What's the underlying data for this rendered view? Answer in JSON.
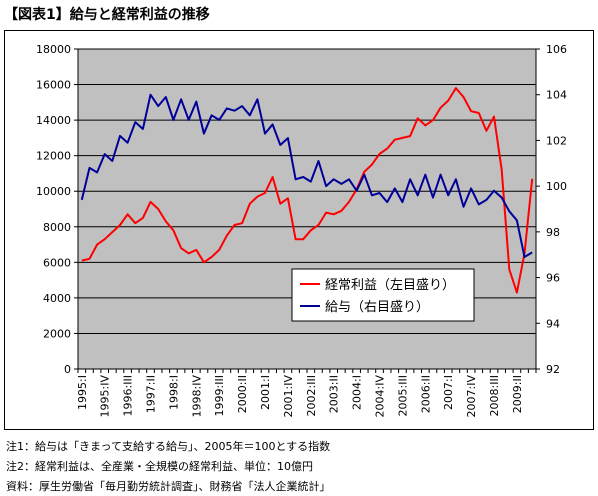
{
  "title": "【図表1】給与と経常利益の推移",
  "notes": [
    "注1：給与は「きまって支給する給与」、2005年＝100とする指数",
    "注2：経常利益は、全産業・全規模の経常利益、単位：10億円",
    "資料：厚生労働省「毎月勤労統計調査」、財務省「法人企業統計」"
  ],
  "chart_data": {
    "type": "line",
    "x": [
      "1995:I",
      "1995:II",
      "1995:III",
      "1995:IV",
      "1996:I",
      "1996:II",
      "1996:III",
      "1996:IV",
      "1997:I",
      "1997:II",
      "1997:III",
      "1997:IV",
      "1998:I",
      "1998:II",
      "1998:III",
      "1998:IV",
      "1999:I",
      "1999:II",
      "1999:III",
      "1999:IV",
      "2000:I",
      "2000:II",
      "2000:III",
      "2000:IV",
      "2001:I",
      "2001:II",
      "2001:III",
      "2001:IV",
      "2002:I",
      "2002:II",
      "2002:III",
      "2002:IV",
      "2003:I",
      "2003:II",
      "2003:III",
      "2003:IV",
      "2004:I",
      "2004:II",
      "2004:III",
      "2004:IV",
      "2005:I",
      "2005:II",
      "2005:III",
      "2005:IV",
      "2006:I",
      "2006:II",
      "2006:III",
      "2006:IV",
      "2007:I",
      "2007:II",
      "2007:III",
      "2007:IV",
      "2008:I",
      "2008:II",
      "2008:III",
      "2008:IV",
      "2009:I",
      "2009:II",
      "2009:III",
      "2009:IV"
    ],
    "x_tick_labels": [
      "1995:I",
      "1995:IV",
      "1996:III",
      "1997:II",
      "1998:I",
      "1998:IV",
      "1999:III",
      "2000:II",
      "2001:I",
      "2001:IV",
      "2002:III",
      "2003:II",
      "2004:I",
      "2004:IV",
      "2005:III",
      "2006:II",
      "2007:I",
      "2007:IV",
      "2008:III",
      "2009:II"
    ],
    "series": [
      {
        "name": "経常利益（左目盛り）",
        "axis": "left",
        "color": "#ff0000",
        "values": [
          6100,
          6200,
          7000,
          7300,
          7700,
          8100,
          8700,
          8200,
          8500,
          9400,
          9000,
          8300,
          7800,
          6800,
          6500,
          6700,
          6000,
          6300,
          6700,
          7500,
          8100,
          8200,
          9300,
          9700,
          9900,
          10800,
          9300,
          9600,
          7300,
          7300,
          7800,
          8100,
          8800,
          8700,
          8900,
          9400,
          10100,
          11100,
          11500,
          12100,
          12400,
          12900,
          13000,
          13100,
          14100,
          13700,
          14000,
          14700,
          15100,
          15800,
          15300,
          14500,
          14400,
          13400,
          14200,
          11200,
          5600,
          4300,
          6500,
          10700
        ]
      },
      {
        "name": "給与（右目盛り）",
        "axis": "right",
        "color": "#000099",
        "values": [
          99.4,
          100.8,
          100.6,
          101.4,
          101.1,
          102.2,
          101.9,
          102.8,
          102.5,
          104.0,
          103.5,
          103.9,
          102.9,
          103.8,
          102.9,
          103.7,
          102.3,
          103.1,
          102.9,
          103.4,
          103.3,
          103.5,
          103.1,
          103.8,
          102.3,
          102.7,
          101.8,
          102.1,
          100.3,
          100.4,
          100.2,
          101.1,
          100.0,
          100.3,
          100.1,
          100.3,
          99.8,
          100.5,
          99.6,
          99.7,
          99.3,
          99.9,
          99.3,
          100.3,
          99.6,
          100.5,
          99.5,
          100.5,
          99.6,
          100.3,
          99.1,
          99.9,
          99.2,
          99.4,
          99.8,
          99.5,
          98.9,
          98.5,
          96.9,
          97.1
        ]
      }
    ],
    "ylim_left": [
      0,
      18000
    ],
    "yticks_left": [
      0,
      2000,
      4000,
      6000,
      8000,
      10000,
      12000,
      14000,
      16000,
      18000
    ],
    "ylim_right": [
      92,
      106
    ],
    "yticks_right": [
      92,
      94,
      96,
      98,
      100,
      102,
      104,
      106
    ],
    "grid": true,
    "legend_position": "lower-right",
    "plot_background": "#c0c0c0"
  }
}
